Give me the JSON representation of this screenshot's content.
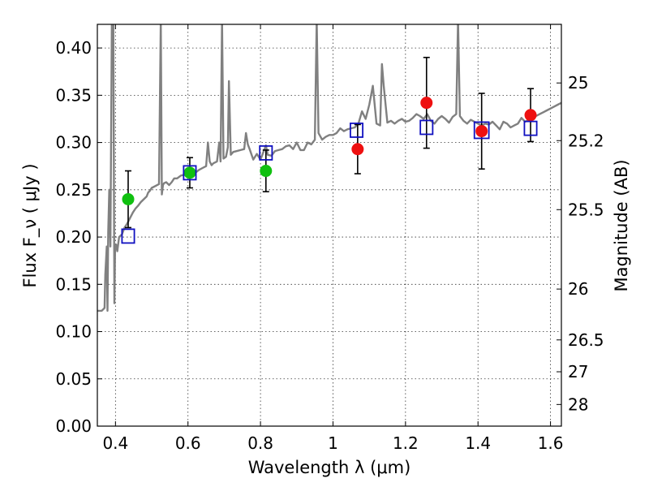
{
  "chart_data": {
    "type": "scatter",
    "title": "",
    "xlabel": "Wavelength  λ (μm)",
    "ylabel": "Flux  F_ν  ( μJy )",
    "ylabel_right": "Magnitude (AB)",
    "xlim": [
      0.35,
      1.63
    ],
    "ylim": [
      0.0,
      0.425
    ],
    "grid": true,
    "x_ticks": [
      0.4,
      0.6,
      0.8,
      1.0,
      1.2,
      1.4,
      1.6
    ],
    "x_tick_labels": [
      "0.4",
      "0.6",
      "0.8",
      "1",
      "1.2",
      "1.4",
      "1.6"
    ],
    "y_ticks": [
      0.0,
      0.05,
      0.1,
      0.15,
      0.2,
      0.25,
      0.3,
      0.35,
      0.4
    ],
    "y_tick_labels": [
      "0.00",
      "0.05",
      "0.10",
      "0.15",
      "0.20",
      "0.25",
      "0.30",
      "0.35",
      "0.40"
    ],
    "right_ticks": [
      {
        "label": "25",
        "flux": 0.363
      },
      {
        "label": "25.2",
        "flux": 0.302
      },
      {
        "label": "25.5",
        "flux": 0.229
      },
      {
        "label": "26",
        "flux": 0.145
      },
      {
        "label": "26.5",
        "flux": 0.0912
      },
      {
        "label": "27",
        "flux": 0.0575
      },
      {
        "label": "28",
        "flux": 0.0229
      }
    ],
    "colors": {
      "spectrum": "#808080",
      "green": "#10c010",
      "red": "#ee1010",
      "model": "#1010c0",
      "errorbar": "#000000"
    },
    "series": [
      {
        "kind": "spectrum",
        "x": [
          0.35,
          0.362,
          0.37,
          0.372,
          0.376,
          0.378,
          0.38,
          0.383,
          0.386,
          0.39,
          0.394,
          0.397,
          0.399,
          0.402,
          0.405,
          0.41,
          0.418,
          0.425,
          0.432,
          0.44,
          0.448,
          0.455,
          0.462,
          0.47,
          0.478,
          0.486,
          0.49,
          0.495,
          0.5,
          0.51,
          0.52,
          0.525,
          0.528,
          0.531,
          0.534,
          0.54,
          0.548,
          0.555,
          0.562,
          0.57,
          0.58,
          0.59,
          0.6,
          0.61,
          0.62,
          0.63,
          0.64,
          0.65,
          0.655,
          0.66,
          0.665,
          0.67,
          0.68,
          0.686,
          0.69,
          0.694,
          0.698,
          0.705,
          0.71,
          0.713,
          0.718,
          0.725,
          0.735,
          0.745,
          0.755,
          0.76,
          0.765,
          0.77,
          0.78,
          0.79,
          0.8,
          0.81,
          0.815,
          0.82,
          0.83,
          0.84,
          0.85,
          0.86,
          0.87,
          0.88,
          0.89,
          0.9,
          0.91,
          0.92,
          0.93,
          0.94,
          0.95,
          0.955,
          0.96,
          0.97,
          0.98,
          0.99,
          1.0,
          1.01,
          1.02,
          1.03,
          1.04,
          1.05,
          1.06,
          1.07,
          1.08,
          1.09,
          1.1,
          1.11,
          1.12,
          1.13,
          1.135,
          1.14,
          1.15,
          1.16,
          1.17,
          1.18,
          1.19,
          1.2,
          1.21,
          1.22,
          1.23,
          1.24,
          1.25,
          1.26,
          1.27,
          1.28,
          1.29,
          1.3,
          1.31,
          1.32,
          1.33,
          1.34,
          1.345,
          1.35,
          1.36,
          1.37,
          1.38,
          1.39,
          1.4,
          1.41,
          1.42,
          1.43,
          1.44,
          1.45,
          1.46,
          1.47,
          1.48,
          1.49,
          1.5,
          1.51,
          1.52,
          1.53,
          1.54,
          1.55,
          1.56,
          1.57,
          1.58,
          1.59,
          1.6,
          1.61,
          1.62,
          1.63
        ],
        "y": [
          0.122,
          0.122,
          0.125,
          0.16,
          0.19,
          0.122,
          0.205,
          0.25,
          0.19,
          0.43,
          0.43,
          0.13,
          0.19,
          0.192,
          0.185,
          0.2,
          0.203,
          0.21,
          0.214,
          0.22,
          0.226,
          0.23,
          0.233,
          0.237,
          0.24,
          0.243,
          0.247,
          0.249,
          0.252,
          0.254,
          0.256,
          0.43,
          0.245,
          0.255,
          0.257,
          0.258,
          0.255,
          0.258,
          0.262,
          0.262,
          0.265,
          0.266,
          0.268,
          0.27,
          0.268,
          0.271,
          0.273,
          0.275,
          0.3,
          0.28,
          0.276,
          0.278,
          0.28,
          0.3,
          0.28,
          0.43,
          0.283,
          0.285,
          0.295,
          0.365,
          0.287,
          0.29,
          0.291,
          0.292,
          0.293,
          0.31,
          0.298,
          0.293,
          0.282,
          0.288,
          0.282,
          0.292,
          0.297,
          0.287,
          0.286,
          0.291,
          0.292,
          0.293,
          0.296,
          0.297,
          0.293,
          0.3,
          0.292,
          0.292,
          0.3,
          0.298,
          0.303,
          0.43,
          0.31,
          0.303,
          0.306,
          0.308,
          0.308,
          0.31,
          0.315,
          0.312,
          0.314,
          0.315,
          0.316,
          0.32,
          0.333,
          0.325,
          0.34,
          0.36,
          0.32,
          0.318,
          0.383,
          0.36,
          0.321,
          0.323,
          0.32,
          0.323,
          0.325,
          0.322,
          0.323,
          0.326,
          0.33,
          0.328,
          0.325,
          0.33,
          0.323,
          0.32,
          0.325,
          0.328,
          0.325,
          0.321,
          0.327,
          0.33,
          0.43,
          0.328,
          0.323,
          0.32,
          0.324,
          0.322,
          0.32,
          0.318,
          0.32,
          0.319,
          0.322,
          0.318,
          0.314,
          0.322,
          0.32,
          0.316,
          0.318,
          0.32,
          0.326,
          0.322,
          0.324,
          0.325,
          0.328,
          0.33,
          0.332,
          0.334,
          0.336,
          0.338,
          0.34,
          0.342
        ]
      },
      {
        "kind": "points",
        "marker": "circle",
        "color_key": "green",
        "x": [
          0.435,
          0.605,
          0.815
        ],
        "y": [
          0.24,
          0.268,
          0.27
        ],
        "err": [
          0.03,
          0.016,
          0.022
        ]
      },
      {
        "kind": "points",
        "marker": "circle",
        "color_key": "red",
        "x": [
          1.068,
          1.258,
          1.41,
          1.545
        ],
        "y": [
          0.293,
          0.342,
          0.312,
          0.329
        ],
        "err": [
          0.026,
          0.048,
          0.04,
          0.028
        ]
      },
      {
        "kind": "points",
        "marker": "square",
        "color_key": "model",
        "x": [
          0.435,
          0.605,
          0.815,
          1.065,
          1.258,
          1.41,
          1.545
        ],
        "y": [
          0.201,
          0.268,
          0.289,
          0.313,
          0.316,
          0.313,
          0.315
        ],
        "half_width": [
          0.017,
          0.017,
          0.017,
          0.017,
          0.017,
          0.02,
          0.017
        ]
      }
    ]
  }
}
